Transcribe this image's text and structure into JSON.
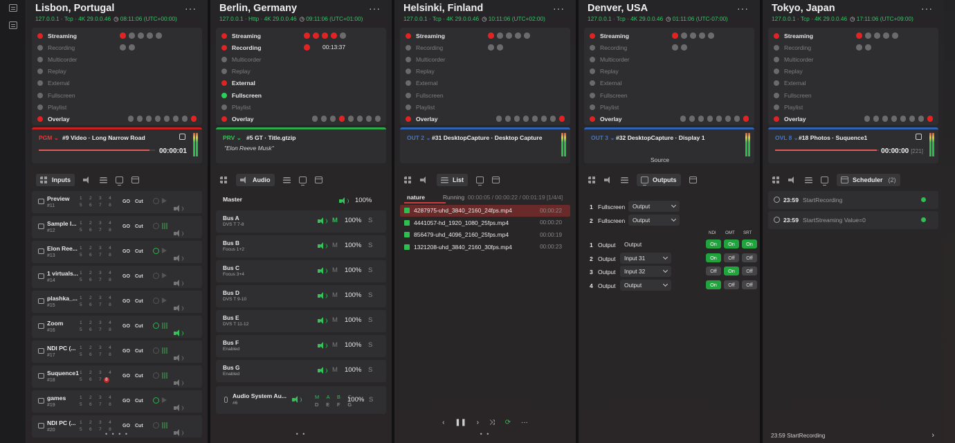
{
  "status_labels": [
    "Streaming",
    "Recording",
    "Multicorder",
    "Replay",
    "External",
    "Fullscreen",
    "Playlist",
    "Overlay"
  ],
  "panels": {
    "lisbon": {
      "title": "Lisbon, Portugal",
      "conn": "127.0.0.1 · Tcp · 4K 29.0.0.46",
      "clock": "08:11:06 (UTC+00:00)",
      "output": {
        "tag": "PGM",
        "name": "#9 Video · Long Narrow Road",
        "time": "00:00:01",
        "progress": 0.95
      },
      "active_tab": "Inputs",
      "inputs": [
        {
          "name": "Preview",
          "num": "#11"
        },
        {
          "name": "Sample I...",
          "num": "#12"
        },
        {
          "name": "Elon Ree...",
          "num": "#13"
        },
        {
          "name": "1 virtuals...",
          "num": "#14"
        },
        {
          "name": "plashka_...",
          "num": "#15"
        },
        {
          "name": "Zoom",
          "num": "#16"
        },
        {
          "name": "NDI PC (...",
          "num": "#17"
        },
        {
          "name": "Suquence1",
          "num": "#18"
        },
        {
          "name": "games",
          "num": "#19"
        },
        {
          "name": "NDI PC (...",
          "num": "#20"
        }
      ],
      "row1": "1  2  3  4",
      "row2": "5  6  7",
      "go": "GO",
      "cut": "Cut",
      "hl8": "8"
    },
    "berlin": {
      "title": "Berlin, Germany",
      "conn": "127.0.0.1 · Http · 4K 29.0.0.46",
      "clock": "09:11:06 (UTC+01:00)",
      "rec_time": "00:13:37",
      "output": {
        "tag": "PRV",
        "name": "#5 GT · Title.gtzip",
        "subtitle": "\"Elon Reeve Musk\""
      },
      "active_tab": "Audio",
      "master": {
        "name": "Master",
        "volume": "100%"
      },
      "buses": [
        {
          "name": "Bus A",
          "sub": "DVS T 7-8",
          "m": "M",
          "volume": "100%",
          "s": "S"
        },
        {
          "name": "Bus B",
          "sub": "Focus 1+2",
          "m": "M",
          "volume": "100%",
          "s": "S"
        },
        {
          "name": "Bus C",
          "sub": "Focus 3+4",
          "m": "M",
          "volume": "100%",
          "s": "S"
        },
        {
          "name": "Bus D",
          "sub": "DVS T 9-10",
          "m": "M",
          "volume": "100%",
          "s": "S"
        },
        {
          "name": "Bus E",
          "sub": "DVS T 11-12",
          "m": "M",
          "volume": "100%",
          "s": "S"
        },
        {
          "name": "Bus F",
          "sub": "Enabled",
          "m": "M",
          "volume": "100%",
          "s": "S"
        },
        {
          "name": "Bus G",
          "sub": "Enabled",
          "m": "M",
          "volume": "100%",
          "s": "S"
        }
      ],
      "aux": {
        "name": "Audio System Au...",
        "num": "#6",
        "mabc": "M A B C",
        "defg": "D E F G",
        "volume": "100%",
        "s": "S"
      }
    },
    "helsinki": {
      "title": "Helsinki, Finland",
      "conn": "127.0.0.1 · Tcp · 4K 29.0.0.46",
      "clock": "10:11:06 (UTC+02:00)",
      "output": {
        "tag": "OUT 2",
        "name": "#31 DesktopCapture · Desktop Capture"
      },
      "active_tab": "List",
      "playlist": {
        "name": "nature",
        "state": "Running",
        "progress": "00:00:05 / 00:00:22 / 00:01:19",
        "index": "[1/4/4]",
        "items": [
          {
            "file": "4287975-uhd_3840_2160_24fps.mp4",
            "dur": "00:00:22"
          },
          {
            "file": "4441057-hd_1920_1080_25fps.mp4",
            "dur": "00:00:20"
          },
          {
            "file": "856479-uhd_4096_2160_25fps.mp4",
            "dur": "00:00:19"
          },
          {
            "file": "1321208-uhd_3840_2160_30fps.mp4",
            "dur": "00:00:23"
          }
        ]
      }
    },
    "denver": {
      "title": "Denver, USA",
      "conn": "127.0.0.1 · Tcp · 4K 29.0.0.46",
      "clock": "01:11:06 (UTC-07:00)",
      "output": {
        "tag": "OUT 3",
        "name": "#32 DesktopCapture · Display 1"
      },
      "active_tab": "Outputs",
      "source_label": "Source",
      "fullscreens": [
        {
          "n": "1",
          "label": "Fullscreen",
          "value": "Output"
        },
        {
          "n": "2",
          "label": "Fullscreen",
          "value": "Output"
        }
      ],
      "cols": [
        "NDI",
        "OMT",
        "SRT"
      ],
      "outputs": [
        {
          "n": "1",
          "label": "Output",
          "value": "Output",
          "ndi": "On",
          "omt": "On",
          "srt": "On"
        },
        {
          "n": "2",
          "label": "Output",
          "value": "Input 31",
          "ndi": "On",
          "omt": "Off",
          "srt": "Off"
        },
        {
          "n": "3",
          "label": "Output",
          "value": "Input 32",
          "ndi": "Off",
          "omt": "On",
          "srt": "Off"
        },
        {
          "n": "4",
          "label": "Output",
          "value": "Output",
          "ndi": "On",
          "omt": "Off",
          "srt": "Off"
        }
      ]
    },
    "tokyo": {
      "title": "Tokyo, Japan",
      "conn": "127.0.0.1 · Tcp · 4K 29.0.0.46",
      "clock": "17:11:06 (UTC+09:00)",
      "output": {
        "tag": "OVL 8",
        "name": "#18 Photos · Suquence1",
        "time": "00:00:00",
        "count": "[221]",
        "progress": 0.98
      },
      "active_tab": "Scheduler",
      "tab_count": "(2)",
      "events": [
        {
          "time": "23:59",
          "action": "StartRecording",
          "extra": ""
        },
        {
          "time": "23:59",
          "action": "StartStreaming",
          "extra": "Value=0"
        }
      ],
      "footer": "23:59 StartRecording"
    }
  },
  "colors": {
    "red": "#e02424",
    "green": "#2fbf51",
    "blue": "#2f64b4",
    "gray_dot": "#6b6b6b"
  },
  "icons": [
    "grid-icon",
    "speaker-icon",
    "list-icon",
    "monitor-icon",
    "calendar-icon",
    "clock-icon",
    "mic-icon",
    "chevron-down-icon",
    "more-icon"
  ]
}
